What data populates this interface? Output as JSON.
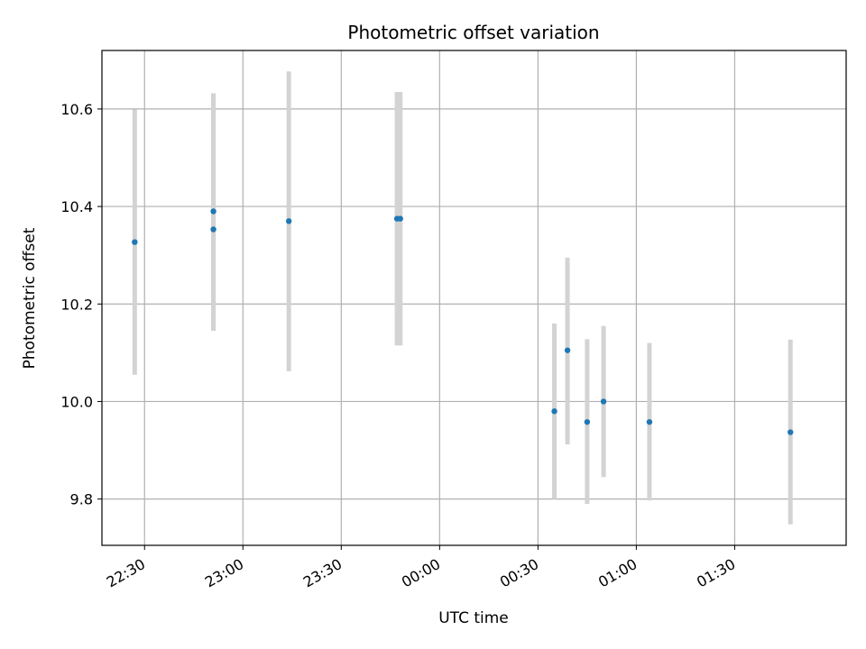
{
  "chart_data": {
    "type": "scatter",
    "title": "Photometric offset variation",
    "xlabel": "UTC time",
    "ylabel": "Photometric offset",
    "x_axis_kind": "time",
    "xlim": [
      "22:17",
      "02:04"
    ],
    "ylim": [
      9.705,
      10.72
    ],
    "grid": true,
    "legend": "none",
    "x_ticks": [
      {
        "t": "22:30",
        "label": "22:30"
      },
      {
        "t": "23:00",
        "label": "23:00"
      },
      {
        "t": "23:30",
        "label": "23:30"
      },
      {
        "t": "00:00",
        "label": "00:00"
      },
      {
        "t": "00:30",
        "label": "00:30"
      },
      {
        "t": "01:00",
        "label": "01:00"
      },
      {
        "t": "01:30",
        "label": "01:30"
      }
    ],
    "y_ticks": [
      {
        "v": 9.8,
        "label": "9.8"
      },
      {
        "v": 10.0,
        "label": "10.0"
      },
      {
        "v": 10.2,
        "label": "10.2"
      },
      {
        "v": 10.4,
        "label": "10.4"
      },
      {
        "v": 10.6,
        "label": "10.6"
      }
    ],
    "series": [
      {
        "marker_color": "#1f77b4",
        "errorbar_color": "#d3d3d3",
        "points": [
          {
            "t": "22:27",
            "y": 10.327,
            "low": 10.055,
            "high": 10.599
          },
          {
            "t": "22:51",
            "y": 10.353,
            "low": 10.145,
            "high": 10.632
          },
          {
            "t": "22:51",
            "y": 10.39,
            "low": 10.148,
            "high": 10.632
          },
          {
            "t": "23:14",
            "y": 10.37,
            "low": 10.062,
            "high": 10.677
          },
          {
            "t": "23:47",
            "y": 10.375,
            "low": 10.115,
            "high": 10.635
          },
          {
            "t": "23:48",
            "y": 10.375,
            "low": 10.115,
            "high": 10.635
          },
          {
            "t": "00:35",
            "y": 9.98,
            "low": 9.8,
            "high": 10.16
          },
          {
            "t": "00:39",
            "y": 10.105,
            "low": 9.912,
            "high": 10.295
          },
          {
            "t": "00:45",
            "y": 9.958,
            "low": 9.79,
            "high": 10.128
          },
          {
            "t": "00:50",
            "y": 10.0,
            "low": 9.845,
            "high": 10.155
          },
          {
            "t": "01:04",
            "y": 9.958,
            "low": 9.797,
            "high": 10.12
          },
          {
            "t": "01:47",
            "y": 9.937,
            "low": 9.748,
            "high": 10.127
          }
        ]
      }
    ]
  }
}
